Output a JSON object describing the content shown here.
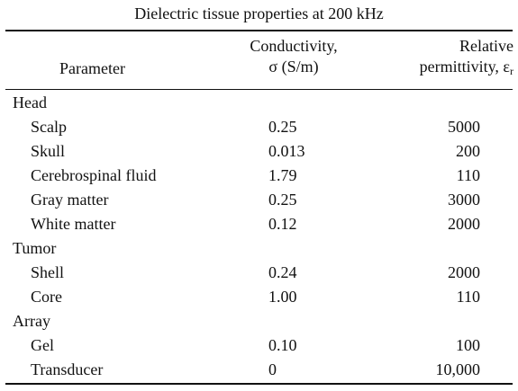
{
  "table": {
    "caption": "Dielectric tissue properties at 200 kHz",
    "headers": {
      "parameter": "Parameter",
      "conductivity_line1": "Conductivity,",
      "conductivity_line2": "σ (S/m)",
      "permittivity_line1": "Relative",
      "permittivity_line2": "permittivity, ε",
      "permittivity_subscript": "r"
    },
    "groups": [
      {
        "name": "Head",
        "rows": [
          {
            "name": "Scalp",
            "conductivity": "0.25",
            "permittivity": "5000"
          },
          {
            "name": "Skull",
            "conductivity": "0.013",
            "permittivity": "200"
          },
          {
            "name": "Cerebrospinal fluid",
            "conductivity": "1.79",
            "permittivity": "110"
          },
          {
            "name": "Gray matter",
            "conductivity": "0.25",
            "permittivity": "3000"
          },
          {
            "name": "White matter",
            "conductivity": "0.12",
            "permittivity": "2000"
          }
        ]
      },
      {
        "name": "Tumor",
        "rows": [
          {
            "name": "Shell",
            "conductivity": "0.24",
            "permittivity": "2000"
          },
          {
            "name": "Core",
            "conductivity": "1.00",
            "permittivity": "110"
          }
        ]
      },
      {
        "name": "Array",
        "rows": [
          {
            "name": "Gel",
            "conductivity": "0.10",
            "permittivity": "100"
          },
          {
            "name": "Transducer",
            "conductivity": "0",
            "permittivity": "10,000"
          }
        ]
      }
    ]
  }
}
